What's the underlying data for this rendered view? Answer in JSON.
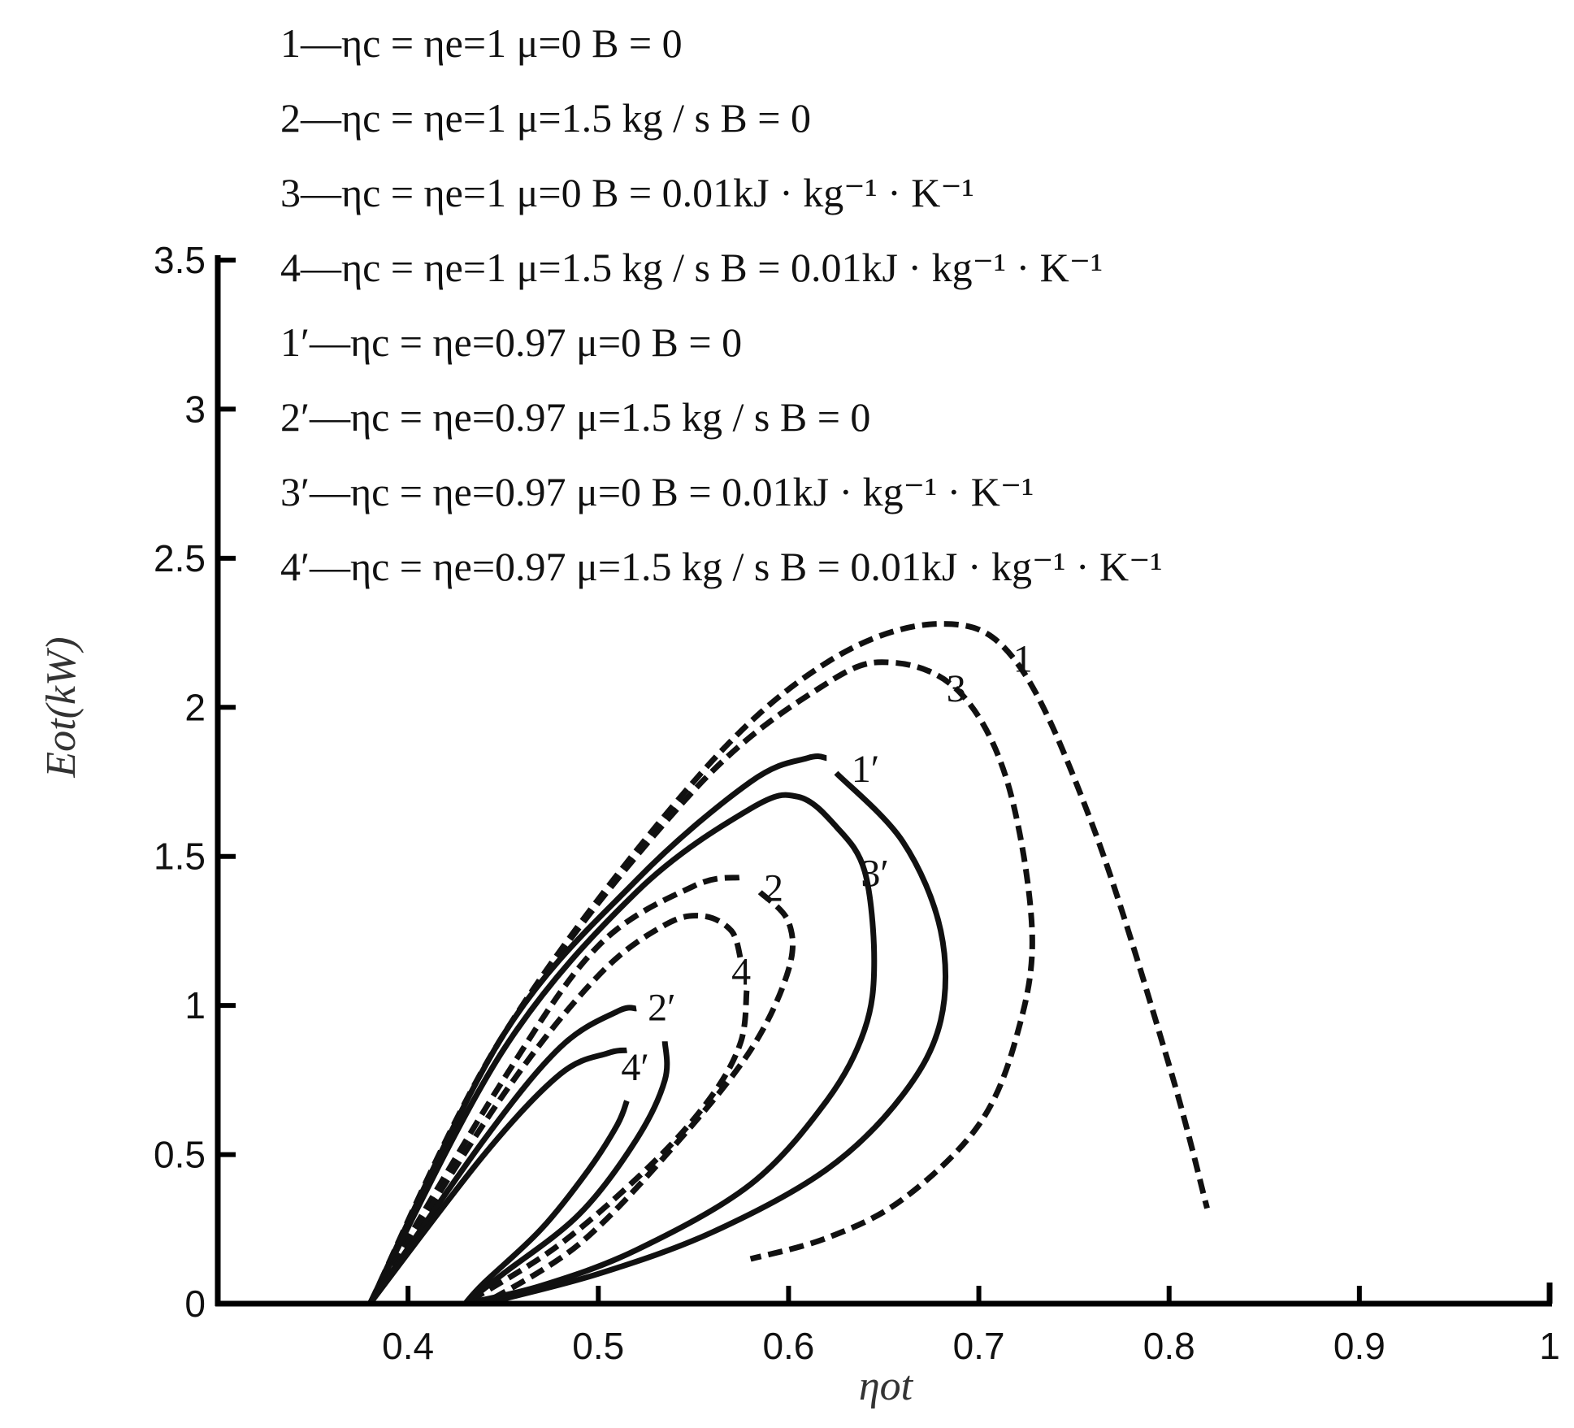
{
  "chart_data": {
    "type": "line",
    "xlabel": "ηot",
    "ylabel": "Eot(kW)",
    "xlim": [
      0.3,
      1.0
    ],
    "ylim": [
      0,
      3.5
    ],
    "x_ticks": [
      0.4,
      0.5,
      0.6,
      0.7,
      0.8,
      0.9,
      1
    ],
    "x_tick_labels": [
      "0.4",
      "0.5",
      "0.6",
      "0.7",
      "0.8",
      "0.9",
      "1"
    ],
    "y_ticks": [
      0,
      0.5,
      1,
      1.5,
      2,
      2.5,
      3,
      3.5
    ],
    "y_tick_labels": [
      "0",
      "0.5",
      "1",
      "1.5",
      "2",
      "2.5",
      "3",
      "3.5"
    ],
    "grid": false,
    "legend_position": "top-left",
    "legend": [
      "1—ηc = ηe=1 μ=0 B = 0",
      "2—ηc = ηe=1 μ=1.5 kg / s B = 0",
      "3—ηc = ηe=1 μ=0 B = 0.01kJ · kg⁻¹ · K⁻¹",
      "4—ηc = ηe=1 μ=1.5 kg / s B = 0.01kJ · kg⁻¹ · K⁻¹",
      "1′—ηc = ηe=0.97 μ=0 B = 0",
      "2′—ηc = ηe=0.97 μ=1.5 kg / s B = 0",
      "3′—ηc = ηe=0.97 μ=0 B = 0.01kJ · kg⁻¹ · K⁻¹",
      "4′—ηc = ηe=0.97 μ=1.5 kg / s B = 0.01kJ · kg⁻¹ · K⁻¹"
    ],
    "series": [
      {
        "name": "1",
        "style": "dashed",
        "x": [
          0.38,
          0.45,
          0.55,
          0.62,
          0.68,
          0.72,
          0.76,
          0.8,
          0.82
        ],
        "y": [
          0,
          0.9,
          1.75,
          2.15,
          2.28,
          2.15,
          1.6,
          0.8,
          0.32
        ]
      },
      {
        "name": "3",
        "style": "dashed",
        "x": [
          0.38,
          0.45,
          0.55,
          0.62,
          0.655,
          0.69,
          0.715,
          0.728,
          0.72,
          0.7,
          0.66,
          0.62,
          0.58
        ],
        "y": [
          0,
          0.9,
          1.72,
          2.08,
          2.15,
          2.05,
          1.75,
          1.25,
          0.9,
          0.6,
          0.35,
          0.22,
          0.15
        ]
      },
      {
        "name": "1′",
        "style": "solid",
        "x": [
          0.38,
          0.45,
          0.52,
          0.58,
          0.61,
          0.62
        ],
        "y": [
          0,
          0.9,
          1.42,
          1.75,
          1.83,
          1.83
        ]
      },
      {
        "name": "1′ branch",
        "style": "solid",
        "x": [
          0.625,
          0.66,
          0.68,
          0.68,
          0.66,
          0.62,
          0.56,
          0.5,
          0.44
        ],
        "y": [
          1.78,
          1.55,
          1.25,
          0.95,
          0.7,
          0.45,
          0.24,
          0.1,
          0
        ]
      },
      {
        "name": "3′",
        "style": "solid",
        "x": [
          0.38,
          0.45,
          0.52,
          0.58,
          0.605,
          0.625,
          0.64,
          0.645,
          0.64,
          0.62,
          0.58,
          0.52,
          0.47,
          0.43
        ],
        "y": [
          0,
          0.85,
          1.38,
          1.66,
          1.7,
          1.6,
          1.45,
          1.15,
          0.92,
          0.68,
          0.4,
          0.18,
          0.06,
          0
        ]
      },
      {
        "name": "2",
        "style": "dashed",
        "x": [
          0.38,
          0.45,
          0.5,
          0.55,
          0.575
        ],
        "y": [
          0,
          0.75,
          1.2,
          1.4,
          1.43
        ]
      },
      {
        "name": "2 branch",
        "style": "dashed",
        "x": [
          0.585,
          0.6,
          0.6,
          0.58,
          0.54,
          0.49,
          0.44
        ],
        "y": [
          1.38,
          1.28,
          1.12,
          0.85,
          0.53,
          0.2,
          0
        ]
      },
      {
        "name": "4",
        "style": "dashed",
        "x": [
          0.38,
          0.45,
          0.5,
          0.535,
          0.555,
          0.57,
          0.575
        ],
        "y": [
          0,
          0.7,
          1.1,
          1.27,
          1.3,
          1.25,
          1.15
        ]
      },
      {
        "name": "4 branch",
        "style": "dashed",
        "x": [
          0.578,
          0.575,
          0.56,
          0.53,
          0.48,
          0.43
        ],
        "y": [
          1.05,
          0.88,
          0.7,
          0.48,
          0.2,
          0
        ]
      },
      {
        "name": "2′",
        "style": "solid",
        "x": [
          0.38,
          0.44,
          0.48,
          0.51,
          0.52
        ],
        "y": [
          0,
          0.55,
          0.86,
          0.98,
          0.99
        ]
      },
      {
        "name": "2′ branch",
        "style": "solid",
        "x": [
          0.535,
          0.535,
          0.52,
          0.49,
          0.45,
          0.43
        ],
        "y": [
          0.88,
          0.75,
          0.55,
          0.3,
          0.1,
          0
        ]
      },
      {
        "name": "4′",
        "style": "solid",
        "x": [
          0.38,
          0.44,
          0.48,
          0.505,
          0.515
        ],
        "y": [
          0,
          0.5,
          0.77,
          0.84,
          0.85
        ]
      },
      {
        "name": "4′ branch",
        "style": "solid",
        "x": [
          0.515,
          0.51,
          0.495,
          0.47,
          0.44,
          0.43
        ],
        "y": [
          0.68,
          0.6,
          0.45,
          0.25,
          0.07,
          0
        ]
      }
    ],
    "curve_labels": [
      {
        "text": "1",
        "x": 0.718,
        "y": 2.12
      },
      {
        "text": "3",
        "x": 0.683,
        "y": 2.02
      },
      {
        "text": "1′",
        "x": 0.633,
        "y": 1.75
      },
      {
        "text": "3′",
        "x": 0.638,
        "y": 1.4
      },
      {
        "text": "2",
        "x": 0.587,
        "y": 1.35
      },
      {
        "text": "4",
        "x": 0.57,
        "y": 1.07
      },
      {
        "text": "2′",
        "x": 0.526,
        "y": 0.95
      },
      {
        "text": "4′",
        "x": 0.512,
        "y": 0.75
      }
    ]
  }
}
